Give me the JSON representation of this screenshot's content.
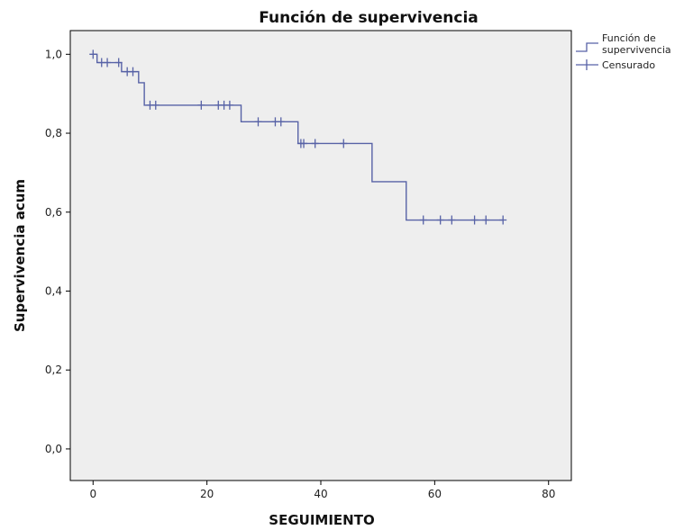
{
  "chart_data": {
    "type": "line",
    "title": "Función de supervivencia",
    "xlabel": "SEGUIMIENTO",
    "ylabel": "Supervivencia acum",
    "xlim": [
      -4,
      84
    ],
    "ylim": [
      -0.08,
      1.06
    ],
    "xticks": [
      {
        "value": 0,
        "label": "0"
      },
      {
        "value": 20,
        "label": "20"
      },
      {
        "value": 40,
        "label": "40"
      },
      {
        "value": 60,
        "label": "60"
      },
      {
        "value": 80,
        "label": "80"
      }
    ],
    "yticks": [
      {
        "value": 0.0,
        "label": "0,0"
      },
      {
        "value": 0.2,
        "label": "0,2"
      },
      {
        "value": 0.4,
        "label": "0,4"
      },
      {
        "value": 0.6,
        "label": "0,6"
      },
      {
        "value": 0.8,
        "label": "0,8"
      },
      {
        "value": 1.0,
        "label": "1,0"
      }
    ],
    "grid": false,
    "legend_position": "top-right",
    "colors": {
      "plot_bg": "#eeeeee",
      "line": "#5762a6",
      "axes": "#000000"
    },
    "series": [
      {
        "name": "Función de supervivencia",
        "step": true,
        "x": [
          0,
          0.7,
          5,
          8,
          9,
          26,
          36,
          49,
          55,
          72
        ],
        "y": [
          1.0,
          0.979,
          0.956,
          0.928,
          0.871,
          0.829,
          0.774,
          0.677,
          0.58,
          0.58
        ]
      },
      {
        "name": "Censurado",
        "marker": "+",
        "x": [
          0,
          1.5,
          2.5,
          4.5,
          6,
          7,
          10,
          11,
          19,
          22,
          23,
          24,
          29,
          32,
          33,
          36.5,
          37,
          39,
          44,
          58,
          61,
          63,
          67,
          69,
          72
        ],
        "y": [
          1.0,
          0.979,
          0.979,
          0.979,
          0.956,
          0.956,
          0.871,
          0.871,
          0.871,
          0.871,
          0.871,
          0.871,
          0.829,
          0.829,
          0.829,
          0.774,
          0.774,
          0.774,
          0.774,
          0.58,
          0.58,
          0.58,
          0.58,
          0.58,
          0.58
        ]
      }
    ]
  }
}
